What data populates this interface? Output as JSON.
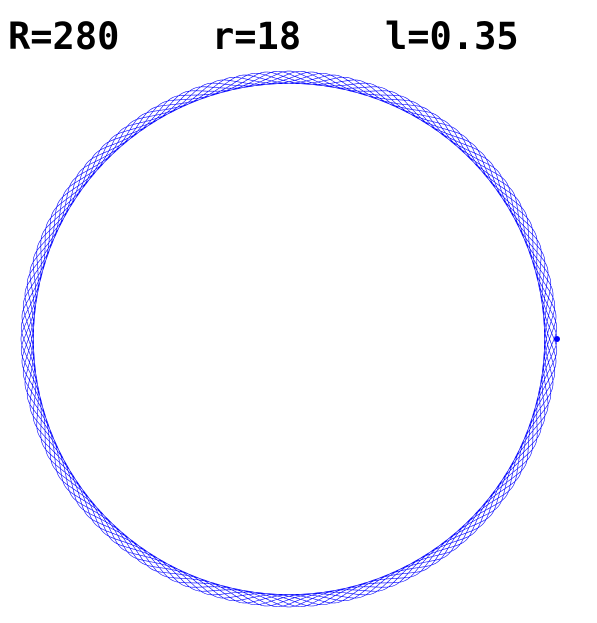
{
  "labels": {
    "R": "R=280",
    "r": "r=18",
    "l": "l=0.35"
  },
  "curve": {
    "R": 280,
    "r": 18,
    "l": 0.35,
    "color": "#0000ff",
    "background": "#ffffff"
  }
}
